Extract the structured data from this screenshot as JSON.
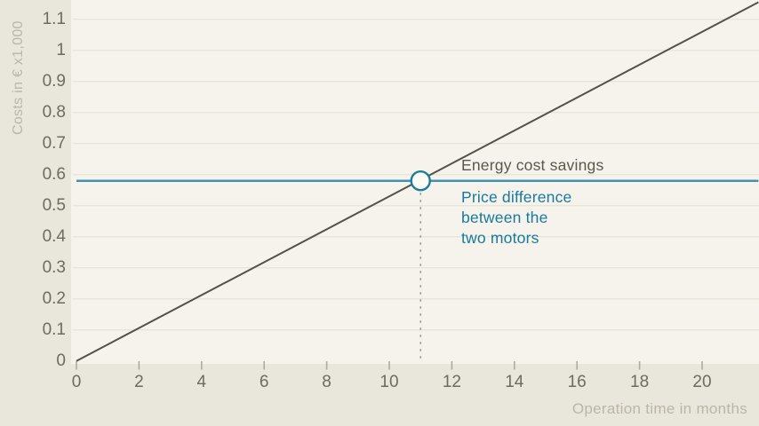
{
  "chart_data": {
    "type": "line",
    "title": "",
    "xlabel": "Operation time in months",
    "ylabel": "Costs in € x1,000",
    "xlim": [
      0,
      21.8
    ],
    "ylim": [
      0,
      1.16
    ],
    "grid": "horizontal",
    "legend": "inline-annotations",
    "x_ticks": {
      "values": [
        0,
        2,
        4,
        6,
        8,
        10,
        12,
        14,
        16,
        18,
        20
      ],
      "labels": [
        "0",
        "2",
        "4",
        "6",
        "8",
        "10",
        "12",
        "14",
        "16",
        "18",
        "20"
      ]
    },
    "y_ticks": {
      "values": [
        0,
        0.1,
        0.2,
        0.3,
        0.4,
        0.5,
        0.6,
        0.7,
        0.8,
        0.9,
        1.0,
        1.1
      ],
      "labels": [
        "0",
        "0.1",
        "0.2",
        "0.3",
        "0.4",
        "0.5",
        "0.6",
        "0.7",
        "0.8",
        "0.9",
        "1",
        "1.1"
      ]
    },
    "series": [
      {
        "name": "Energy cost savings",
        "type": "line",
        "color": "#54514a",
        "points": [
          [
            0,
            0
          ],
          [
            21.8,
            1.155
          ]
        ]
      },
      {
        "name": "Price difference between the two motors",
        "type": "line",
        "color": "#4291af",
        "points": [
          [
            0,
            0.58
          ],
          [
            21.8,
            0.58
          ]
        ]
      }
    ],
    "intersection_marker": {
      "x": 11,
      "y": 0.58
    },
    "drop_line": {
      "x": 11,
      "from_y": 0.58,
      "to_y": 0,
      "style": "dashed"
    },
    "annotations": {
      "energy_label": "Energy cost savings",
      "price_label_lines": [
        "Price difference",
        "between the",
        "two motors"
      ]
    }
  },
  "colors": {
    "background": "#e9e6db",
    "plot_background": "#f5f3eb",
    "gridline": "#e8e5da",
    "axis_tick_mark": "#aeab9f",
    "axis_tick_text": "#6e6b61",
    "axis_title_text": "#bab7a9",
    "energy_line": "#54514a",
    "price_line": "#4291af",
    "marker_stroke": "#1e7d98",
    "marker_fill": "#fcfbf6",
    "dashed_line": "#a6a399",
    "annotation_text": "#5b584c",
    "annotation_teal_text": "#187a9c"
  }
}
